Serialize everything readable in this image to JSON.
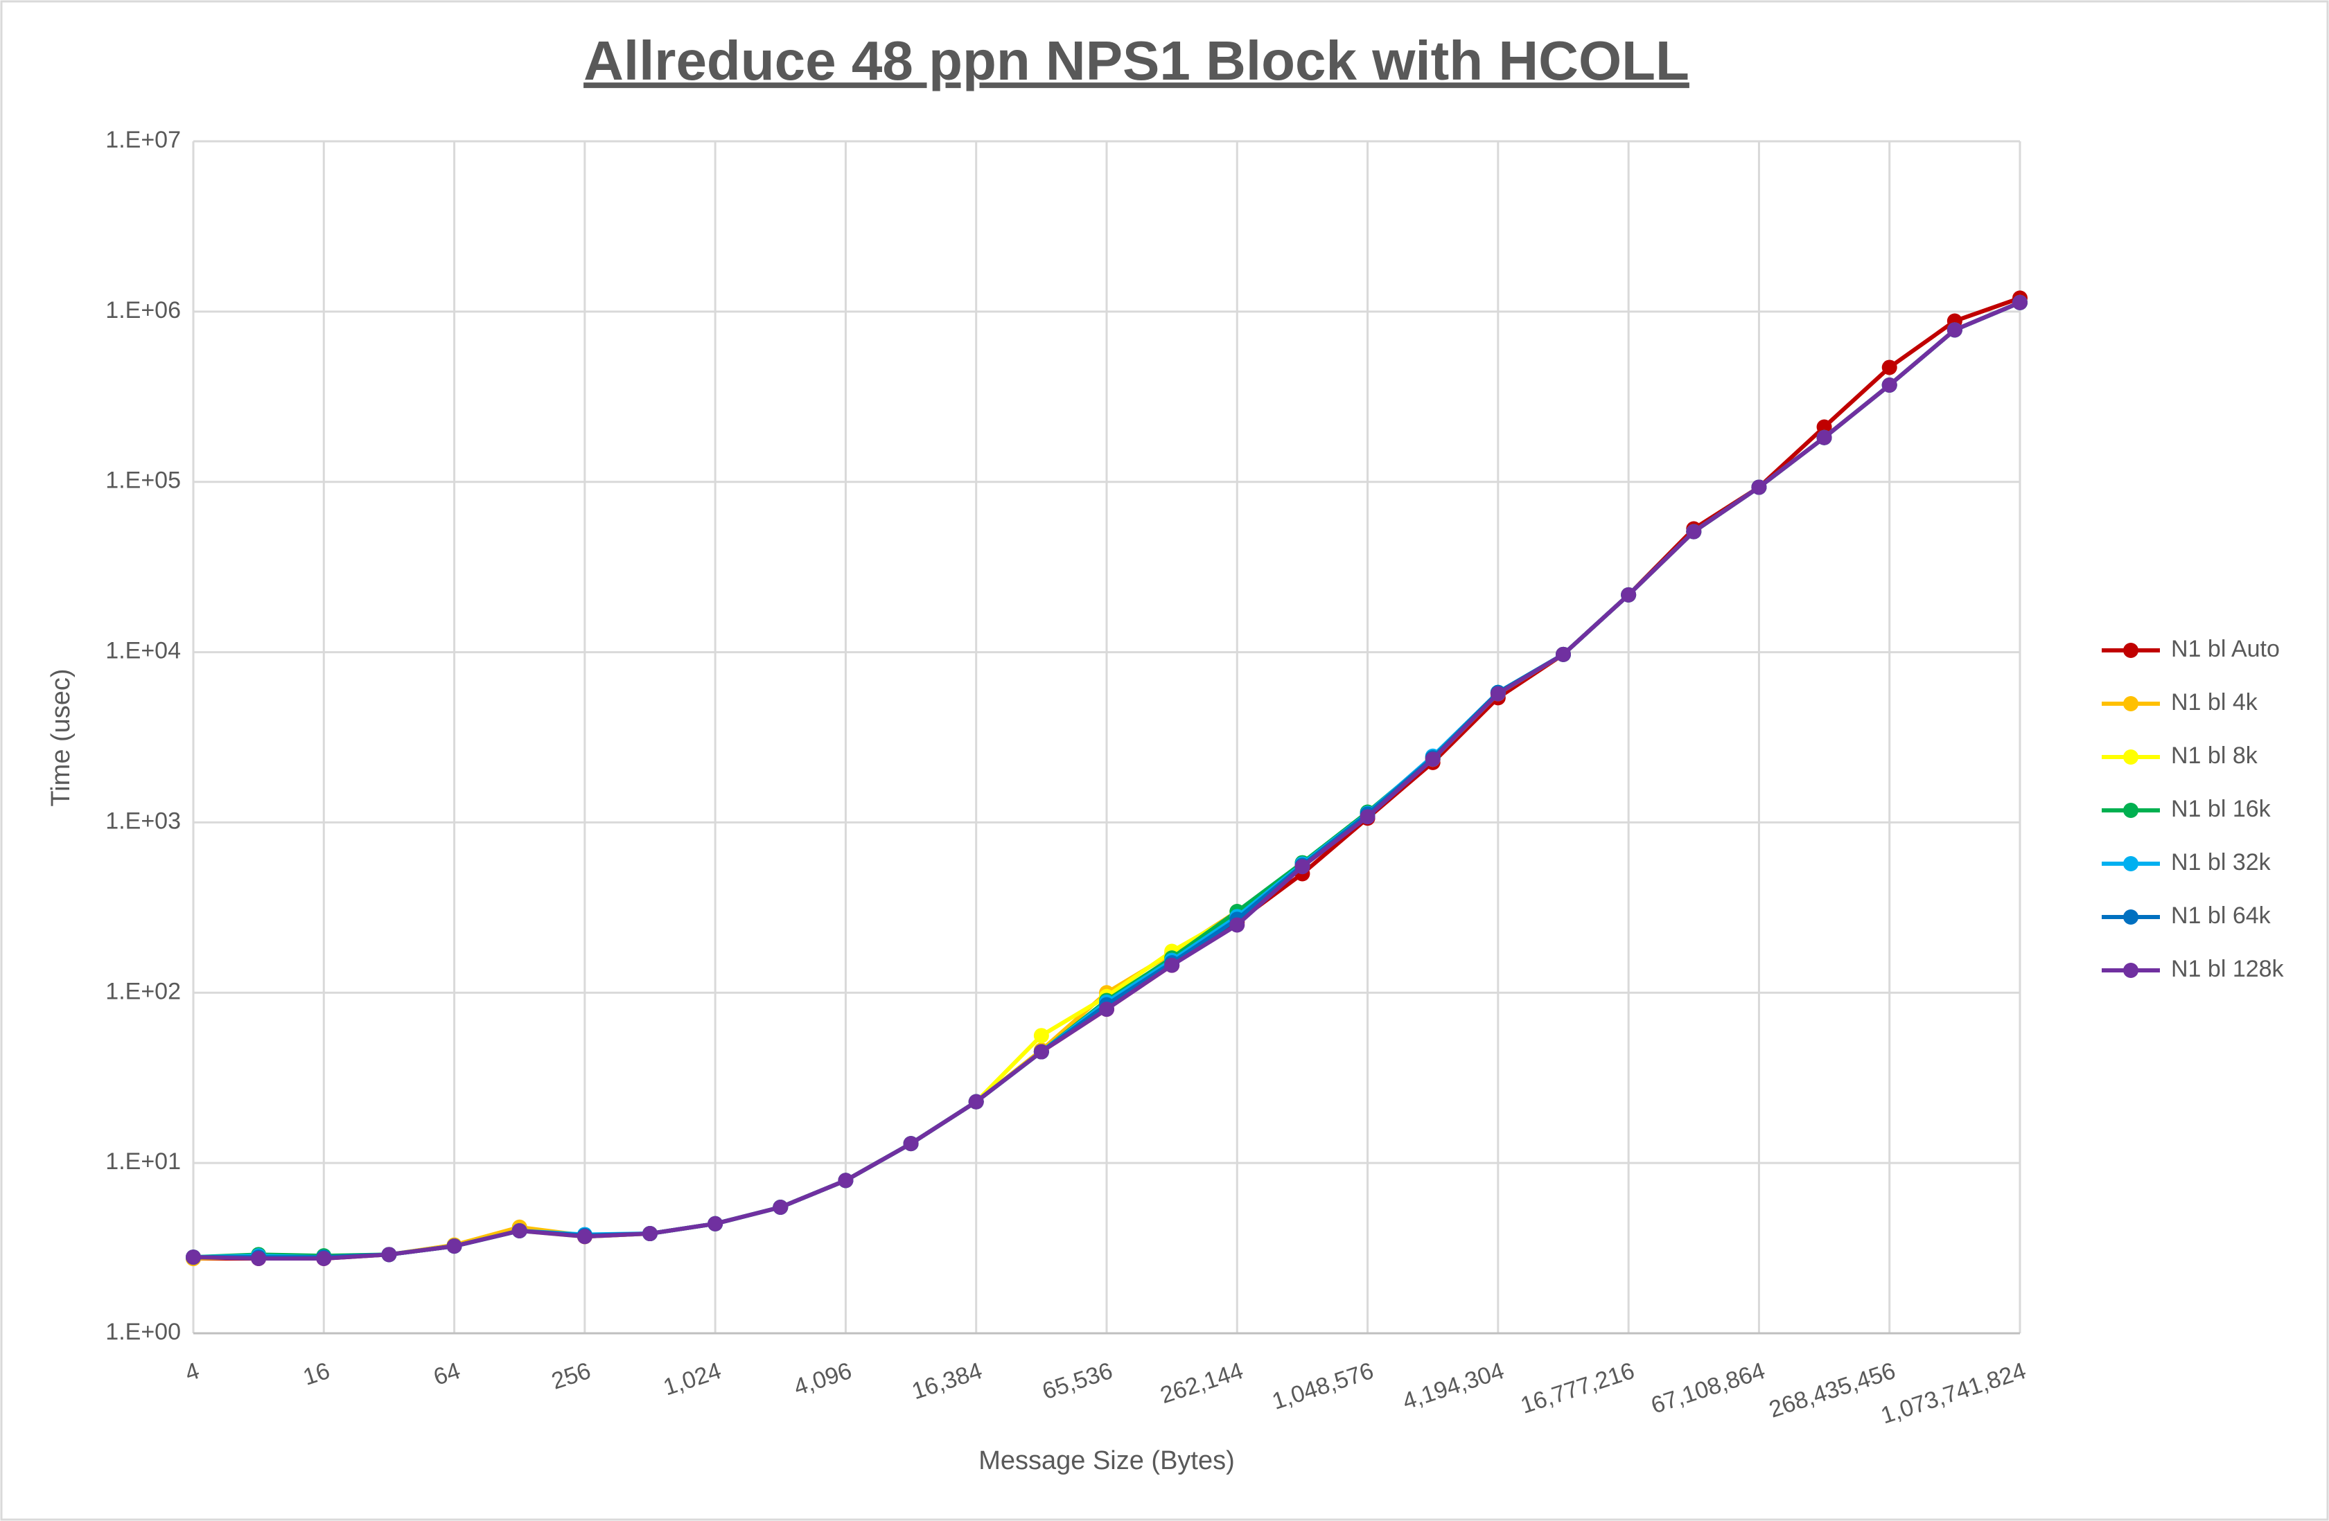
{
  "chart_data": {
    "type": "line",
    "title": "Allreduce 48 ppn NPS1 Block with HCOLL",
    "x_label": "Message Size (Bytes)",
    "y_label": "Time (usec)",
    "log_y": true,
    "grid": true,
    "legend": "right",
    "categories": [
      "4",
      null,
      "16",
      null,
      "64",
      null,
      "256",
      null,
      "1,024",
      null,
      "4,096",
      null,
      "16,384",
      null,
      "65,536",
      null,
      "262,144",
      null,
      "1,048,576",
      null,
      "4,194,304",
      null,
      "16,777,216",
      null,
      "67,108,864",
      null,
      "268,435,456",
      null,
      "1,073,741,824"
    ],
    "ylim": [
      1,
      10000000
    ],
    "yticks": [
      {
        "value": 1,
        "label": "1.E+00"
      },
      {
        "value": 10,
        "label": "1.E+01"
      },
      {
        "value": 100,
        "label": "1.E+02"
      },
      {
        "value": 1000,
        "label": "1.E+03"
      },
      {
        "value": 10000,
        "label": "1.E+04"
      },
      {
        "value": 100000,
        "label": "1.E+05"
      },
      {
        "value": 1000000,
        "label": "1.E+06"
      },
      {
        "value": 10000000,
        "label": "1.E+07"
      }
    ],
    "series": [
      {
        "name": "N1 bl Auto",
        "color": "#c00000",
        "values": [
          2.75,
          2.75,
          2.75,
          2.9,
          3.25,
          4.1,
          3.7,
          3.85,
          4.4,
          5.5,
          7.9,
          13,
          22.9,
          45,
          80,
          145,
          260,
          500,
          1060,
          2250,
          5400,
          9700,
          21700,
          53000,
          93000,
          210000,
          470000,
          880000,
          1200000
        ]
      },
      {
        "name": "N1 bl 4k",
        "color": "#ffc000",
        "values": [
          2.75,
          2.8,
          2.8,
          2.9,
          3.3,
          4.2,
          3.75,
          3.85,
          4.4,
          5.5,
          7.9,
          13,
          22.9,
          46,
          100,
          170,
          300,
          560,
          1120,
          2350,
          5700,
          9700,
          21700,
          51000,
          93000,
          182000,
          370000,
          780000,
          1130000
        ]
      },
      {
        "name": "N1 bl 8k",
        "color": "#ffff00",
        "values": [
          2.8,
          2.8,
          2.8,
          2.9,
          3.25,
          4.0,
          3.7,
          3.85,
          4.4,
          5.5,
          7.9,
          13,
          22.9,
          56,
          95,
          175,
          290,
          560,
          1120,
          2350,
          5700,
          9700,
          21700,
          51000,
          93000,
          182000,
          370000,
          780000,
          1130000
        ]
      },
      {
        "name": "N1 bl 16k",
        "color": "#00b050",
        "values": [
          2.8,
          2.9,
          2.85,
          2.9,
          3.25,
          4.0,
          3.75,
          3.85,
          4.4,
          5.5,
          7.9,
          13,
          22.9,
          45,
          90,
          160,
          300,
          580,
          1150,
          2400,
          5800,
          9700,
          21700,
          51000,
          93000,
          182000,
          370000,
          780000,
          1130000
        ]
      },
      {
        "name": "N1 bl 32k",
        "color": "#00b0f0",
        "values": [
          2.8,
          2.85,
          2.8,
          2.9,
          3.25,
          4.0,
          3.8,
          3.85,
          4.4,
          5.5,
          7.9,
          13,
          22.9,
          45,
          88,
          155,
          280,
          570,
          1130,
          2450,
          5800,
          9700,
          21700,
          51000,
          93000,
          182000,
          370000,
          780000,
          1130000
        ]
      },
      {
        "name": "N1 bl 64k",
        "color": "#0070c0",
        "values": [
          2.8,
          2.8,
          2.8,
          2.9,
          3.25,
          4.0,
          3.75,
          3.85,
          4.4,
          5.5,
          7.9,
          13,
          22.9,
          45,
          85,
          150,
          270,
          560,
          1120,
          2400,
          5800,
          9700,
          21700,
          51000,
          93000,
          182000,
          370000,
          780000,
          1130000
        ]
      },
      {
        "name": "N1 bl 128k",
        "color": "#7030a0",
        "values": [
          2.8,
          2.75,
          2.75,
          2.9,
          3.25,
          4.0,
          3.7,
          3.85,
          4.4,
          5.5,
          7.9,
          13,
          22.9,
          45,
          80,
          145,
          250,
          550,
          1080,
          2350,
          5700,
          9700,
          21700,
          51000,
          93000,
          182000,
          370000,
          780000,
          1130000
        ]
      }
    ]
  }
}
